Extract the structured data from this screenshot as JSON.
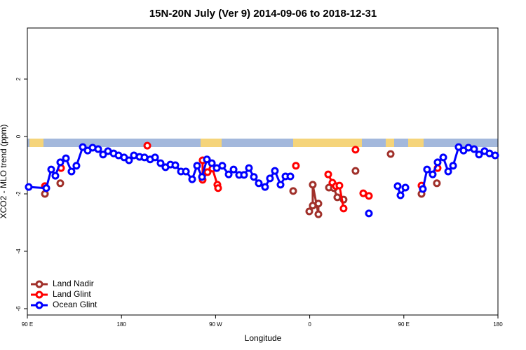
{
  "chart_data": {
    "type": "line",
    "title": "15N-20N July (Ver 9)   2014-09-06 to 2018-12-31",
    "x_label": "Longitude",
    "y_label": "XCO2 - MLO trend (ppm)",
    "xlim": [
      90,
      540
    ],
    "ylim": [
      -6.22,
      3.78
    ],
    "xticks": [
      {
        "value": 90,
        "label": "90 E"
      },
      180,
      {
        "value": 270,
        "label": "90 W"
      },
      {
        "value": 360,
        "label": "0"
      },
      {
        "value": 450,
        "label": "90 E"
      },
      {
        "value": 540,
        "label": "180"
      }
    ],
    "yticks": [
      -6,
      -4,
      -2,
      0,
      2
    ],
    "legend": "bottom-left",
    "series": [
      {
        "name": "Land Nadir",
        "color": "#a0302a",
        "x": [
          106.8,
          null,
          121.5,
          null,
          344.2,
          null,
          359.6,
          362.9,
          362.9,
          368.3,
          368.3,
          null,
          378.4,
          383.1,
          386.4,
          392.4,
          null,
          403.8,
          null,
          437.4,
          null,
          466.9,
          null,
          481.6
        ],
        "values": [
          -2.0,
          null,
          -1.63,
          null,
          -1.9,
          null,
          -2.61,
          -2.41,
          -1.68,
          -2.71,
          -2.34,
          null,
          -1.78,
          -1.8,
          -2.12,
          -2.2,
          null,
          -1.2,
          null,
          -0.61,
          null,
          -2.0,
          null,
          -1.63
        ]
      },
      {
        "name": "Land Glint",
        "color": "#ff0000",
        "x": [
          106.8,
          null,
          122.2,
          null,
          204.7,
          null,
          257.6,
          257.6,
          262.3,
          267.0,
          271.7,
          272.4,
          null,
          346.8,
          null,
          377.7,
          381.7,
          385.1,
          388.4,
          392.4,
          null,
          403.8,
          null,
          411.2,
          416.6,
          null,
          466.9,
          null,
          482.3
        ],
        "values": [
          -1.73,
          null,
          -1.1,
          null,
          -0.32,
          null,
          -0.83,
          -1.51,
          -1.24,
          -1.12,
          -1.68,
          -1.8,
          null,
          -1.02,
          null,
          -1.32,
          -1.61,
          -1.73,
          -1.71,
          -2.51,
          null,
          -0.46,
          null,
          -1.98,
          -2.07,
          null,
          -1.71,
          null,
          -1.1
        ]
      },
      {
        "name": "Ocean Glint",
        "color": "#0000ff",
        "x": [
          91.3,
          108.1,
          112.8,
          116.8,
          121.5,
          126.9,
          132.2,
          136.9,
          143.0,
          147.7,
          152.4,
          157.7,
          162.4,
          167.1,
          172.5,
          177.2,
          182.5,
          187.2,
          191.9,
          197.3,
          202.0,
          207.4,
          212.1,
          217.4,
          222.1,
          226.8,
          231.5,
          236.9,
          241.6,
          247.6,
          252.3,
          257.0,
          261.7,
          266.4,
          271.1,
          276.4,
          282.5,
          287.2,
          292.5,
          297.2,
          301.9,
          306.6,
          311.3,
          317.3,
          322.0,
          326.7,
          332.1,
          336.8,
          341.5,
          null,
          416.6,
          null,
          444.1,
          446.8,
          451.5,
          null,
          468.2,
          472.2,
          477.6,
          482.3,
          487.7,
          492.4,
          497.1,
          502.4,
          507.1,
          511.8,
          517.2,
          521.9,
          527.2,
          531.9,
          537.3
        ],
        "values": [
          -1.76,
          -1.8,
          -1.15,
          -1.37,
          -0.9,
          -0.76,
          -1.22,
          -1.02,
          -0.37,
          -0.49,
          -0.39,
          -0.44,
          -0.63,
          -0.51,
          -0.59,
          -0.66,
          -0.73,
          -0.83,
          -0.66,
          -0.71,
          -0.73,
          -0.8,
          -0.73,
          -0.93,
          -1.07,
          -0.98,
          -1.0,
          -1.22,
          -1.22,
          -1.49,
          -1.02,
          -1.41,
          -0.8,
          -0.93,
          -1.1,
          -1.02,
          -1.32,
          -1.15,
          -1.34,
          -1.34,
          -1.1,
          -1.41,
          -1.63,
          -1.76,
          -1.46,
          -1.2,
          -1.68,
          -1.39,
          -1.39,
          null,
          -2.68,
          null,
          -1.73,
          -2.05,
          -1.78,
          null,
          -1.83,
          -1.15,
          -1.32,
          -0.9,
          -0.73,
          -1.22,
          -1.02,
          -0.37,
          -0.49,
          -0.39,
          -0.44,
          -0.63,
          -0.51,
          -0.59,
          -0.66
        ]
      }
    ]
  }
}
